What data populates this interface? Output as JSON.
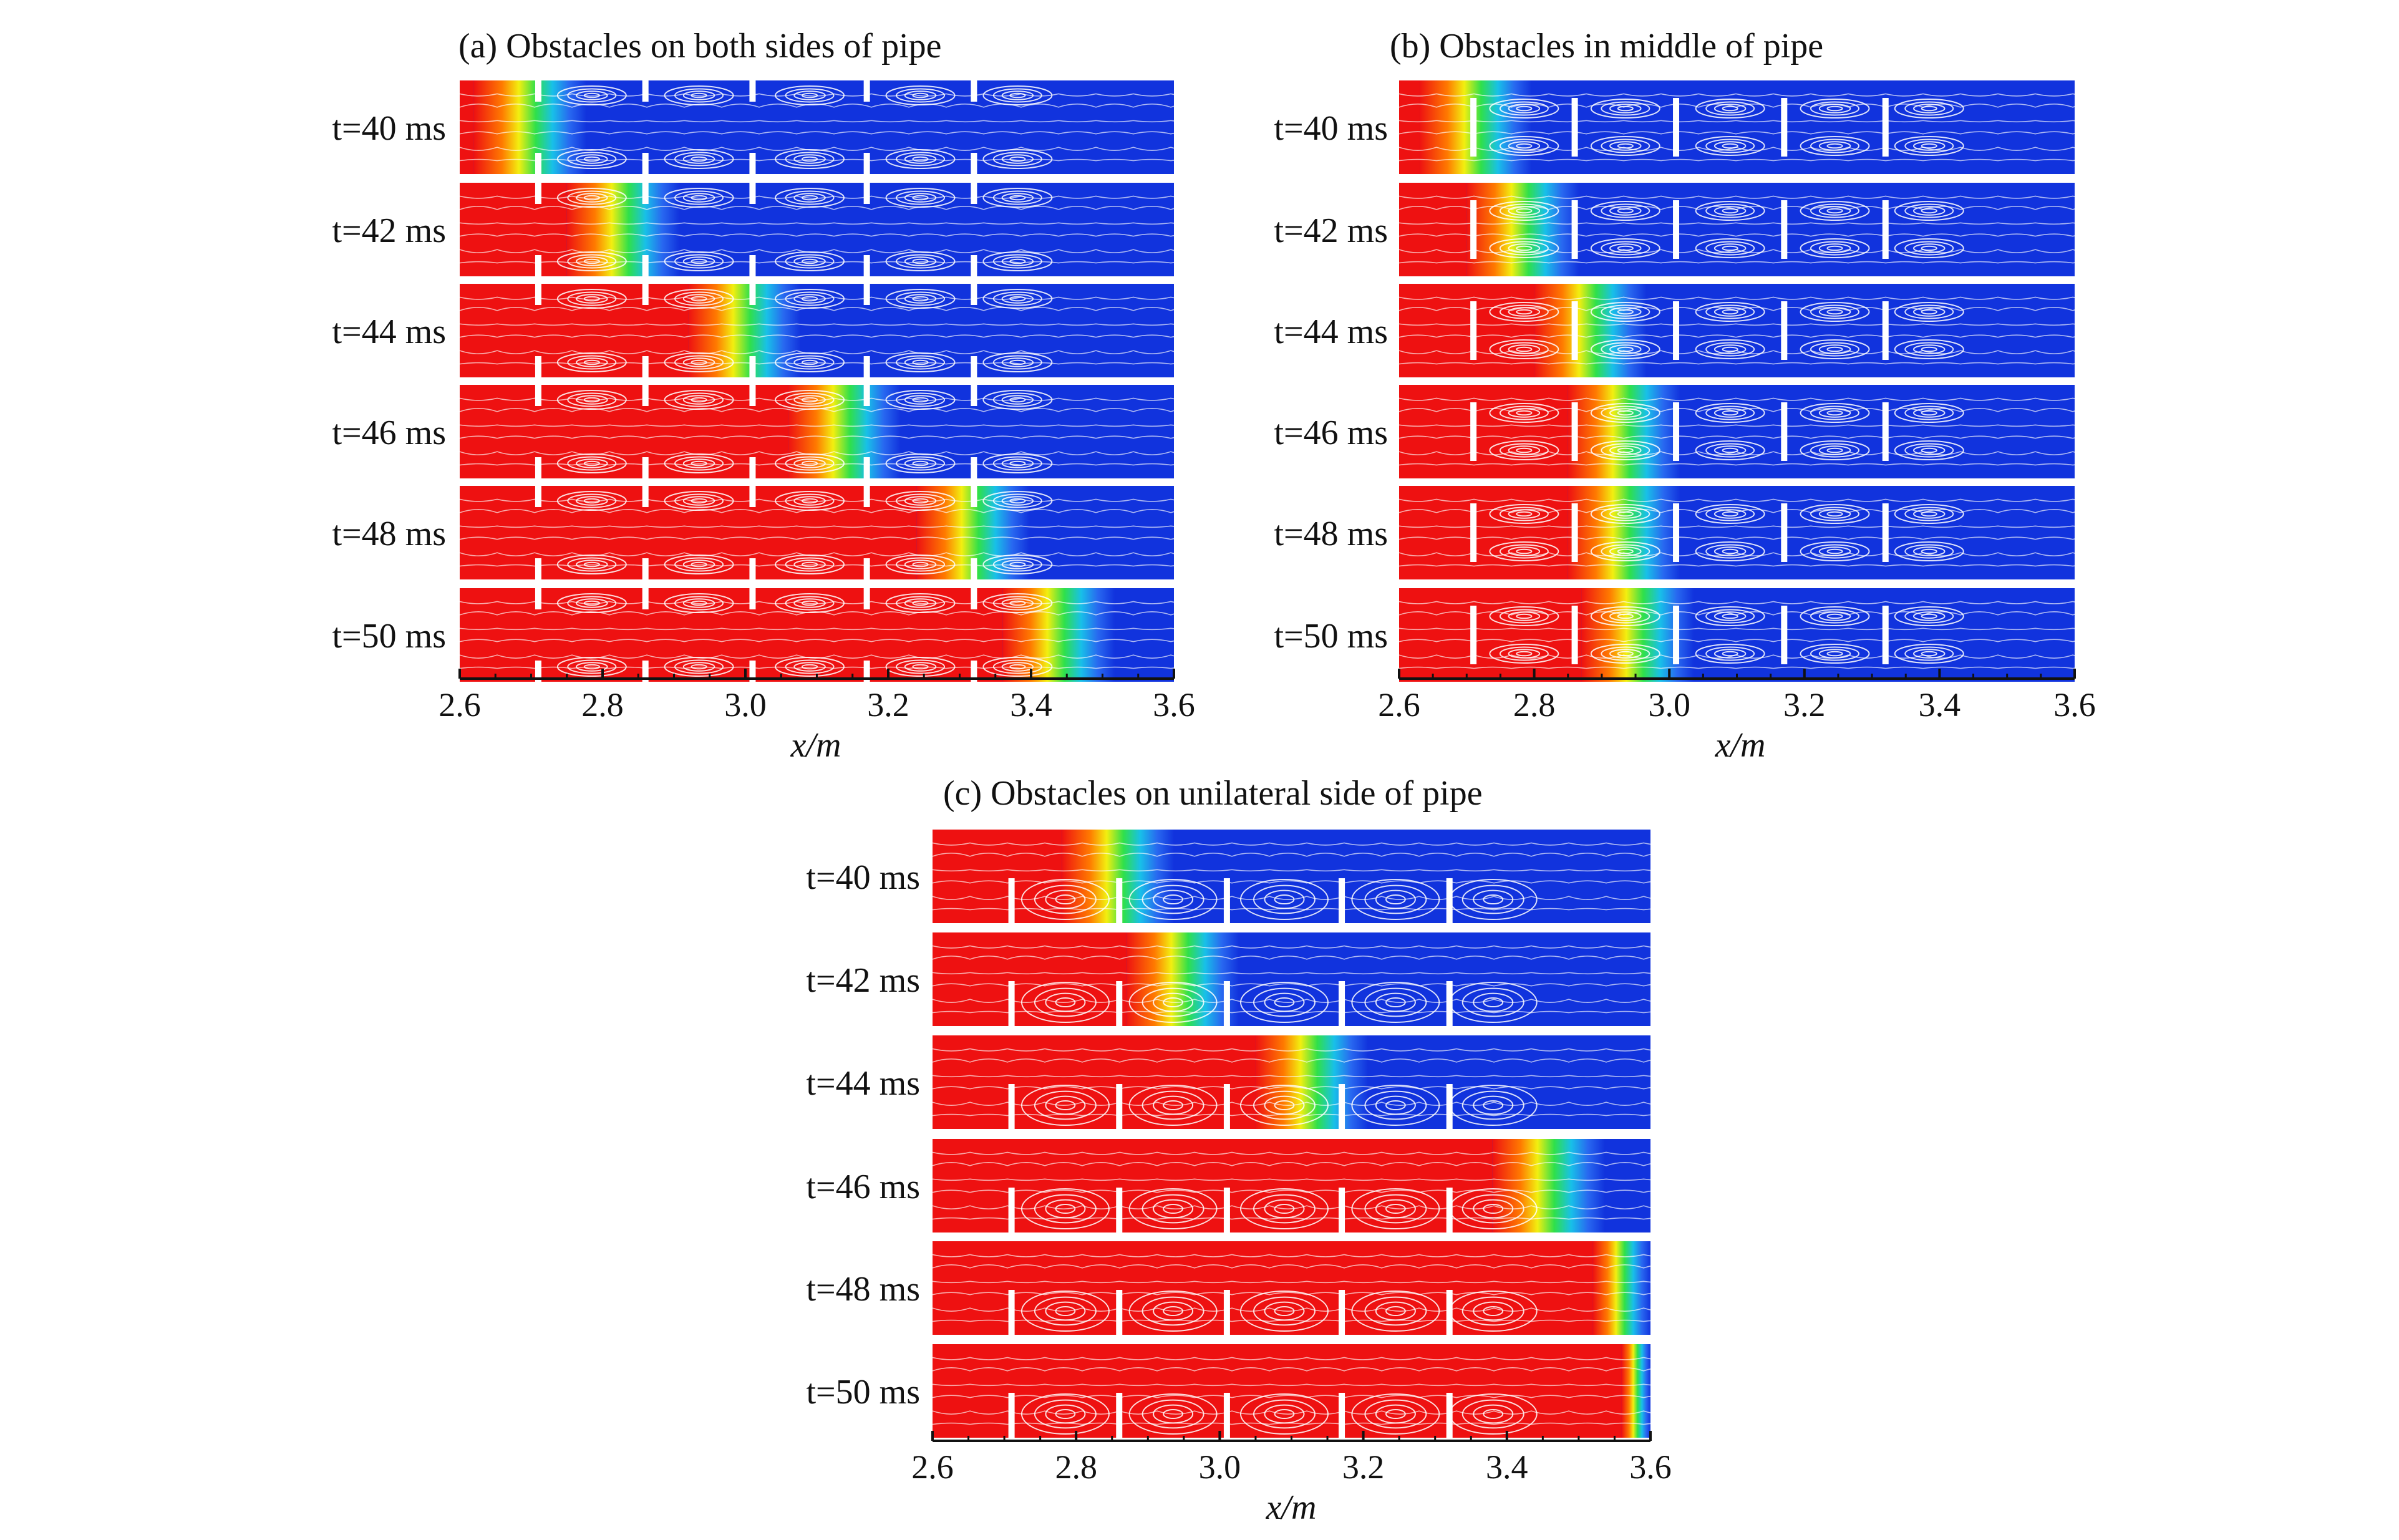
{
  "panels": [
    {
      "id": "a",
      "title": "(a) Obstacles on both sides of pipe",
      "layout": "both-sides",
      "time_labels": [
        "t=40 ms",
        "t=42 ms",
        "t=44 ms",
        "t=46 ms",
        "t=48 ms",
        "t=50 ms"
      ],
      "flame_front_x": [
        2.62,
        2.75,
        2.92,
        3.06,
        3.24,
        3.36
      ],
      "x_ticks": [
        "2.6",
        "2.8",
        "3.0",
        "3.2",
        "3.4",
        "3.6"
      ],
      "x_label": "x/m"
    },
    {
      "id": "b",
      "title": "(b) Obstacles in middle of pipe",
      "layout": "middle",
      "time_labels": [
        "t=40 ms",
        "t=42 ms",
        "t=44 ms",
        "t=46 ms",
        "t=48 ms",
        "t=50 ms"
      ],
      "flame_front_x": [
        2.63,
        2.7,
        2.8,
        2.85,
        2.85,
        2.87
      ],
      "x_ticks": [
        "2.6",
        "2.8",
        "3.0",
        "3.2",
        "3.4",
        "3.6"
      ],
      "x_label": "x/m"
    },
    {
      "id": "c",
      "title": "(c) Obstacles on unilateral side of  pipe",
      "layout": "unilateral",
      "time_labels": [
        "t=40 ms",
        "t=42 ms",
        "t=44 ms",
        "t=46 ms",
        "t=48 ms",
        "t=50 ms"
      ],
      "flame_front_x": [
        2.78,
        2.87,
        3.05,
        3.38,
        3.52,
        3.56
      ],
      "x_ticks": [
        "2.6",
        "2.8",
        "3.0",
        "3.2",
        "3.4",
        "3.6"
      ],
      "x_label": "x/m"
    }
  ],
  "x_range": [
    2.6,
    3.6
  ],
  "obstacle_x": [
    2.71,
    2.86,
    3.01,
    3.17,
    3.32
  ],
  "colors": {
    "cold": "#1133dd",
    "hot": "#ee1111",
    "streamline": "#ffffff",
    "axis": "#111111"
  }
}
